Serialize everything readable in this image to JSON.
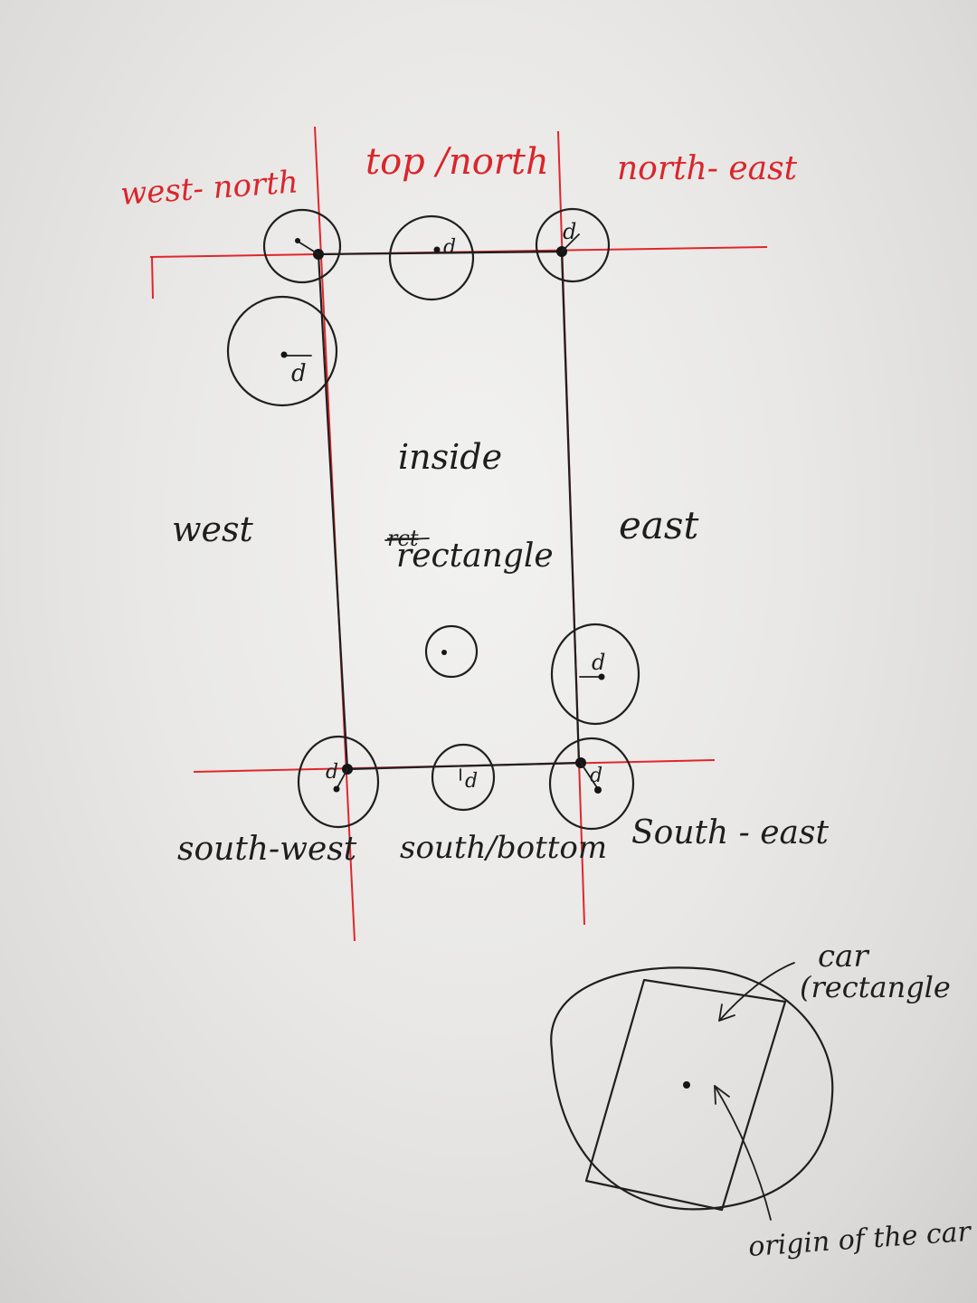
{
  "regions": {
    "west_north": "west- north",
    "top_north": "top /north",
    "north_east": "north- east",
    "west": "west",
    "east": "east",
    "inside": "inside",
    "rectangle_struck": "rct",
    "rectangle": "rectangle",
    "south_west": "south-west",
    "south_bottom": "south/bottom",
    "south_east": "South - east"
  },
  "radius_label": "d",
  "car_diagram": {
    "car_label": "car",
    "rectangle_label": "(rectangle",
    "origin_label": "origin of the car"
  },
  "colors": {
    "red_ink": "#d9262c",
    "black_ink": "#1f1f1f",
    "paper": "#ecebe9"
  }
}
